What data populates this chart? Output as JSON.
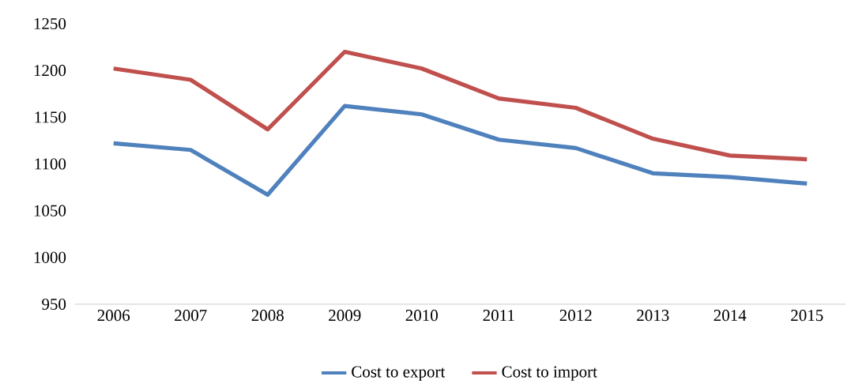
{
  "chart_data": {
    "type": "line",
    "categories": [
      "2006",
      "2007",
      "2008",
      "2009",
      "2010",
      "2011",
      "2012",
      "2013",
      "2014",
      "2015"
    ],
    "series": [
      {
        "name": "Cost to export",
        "color": "#4f81bd",
        "values": [
          1122,
          1115,
          1067,
          1162,
          1153,
          1126,
          1117,
          1090,
          1086,
          1079
        ]
      },
      {
        "name": "Cost to import",
        "color": "#c0504d",
        "values": [
          1202,
          1190,
          1137,
          1220,
          1202,
          1170,
          1160,
          1127,
          1109,
          1105
        ]
      }
    ],
    "ylim": [
      950,
      1250
    ],
    "yticks": [
      950,
      1000,
      1050,
      1100,
      1150,
      1200,
      1250
    ],
    "grid": false,
    "legend": "bottom",
    "marker": "none",
    "line_style": "solid"
  }
}
